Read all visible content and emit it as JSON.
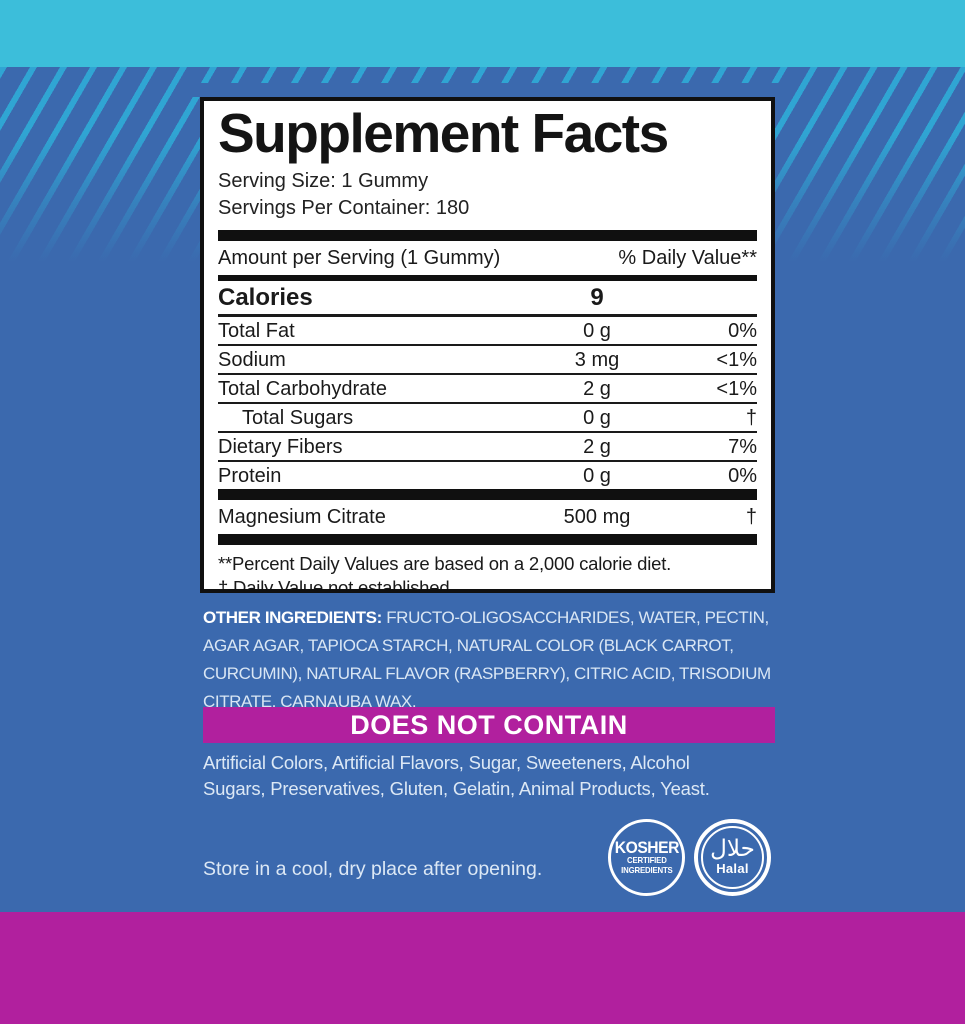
{
  "colors": {
    "teal_band": "#3cbeda",
    "background_blue": "#3b69ae",
    "stripe_cyan": "#2fa8d5",
    "magenta": "#b1209e",
    "panel_black": "#101010",
    "light_text": "#dce8f5"
  },
  "panel": {
    "title": "Supplement Facts",
    "serving_size": "Serving Size: 1 Gummy",
    "servings_per_container": "Servings Per Container: 180",
    "header": {
      "amount_label": "Amount per Serving (1 Gummy)",
      "dv_label": "% Daily Value**"
    },
    "calories": {
      "label": "Calories",
      "value": "9"
    },
    "rows": [
      {
        "name": "Total Fat",
        "amount": "0 g",
        "dv": "0%"
      },
      {
        "name": "Sodium",
        "amount": "3 mg",
        "dv": "<1%"
      },
      {
        "name": "Total Carbohydrate",
        "amount": "2 g",
        "dv": "<1%"
      },
      {
        "name": "Total Sugars",
        "amount": "0 g",
        "dv": "†"
      },
      {
        "name": "Dietary Fibers",
        "amount": "2 g",
        "dv": "7%"
      },
      {
        "name": "Protein",
        "amount": "0 g",
        "dv": "0%"
      }
    ],
    "supplement_row": {
      "name": "Magnesium Citrate",
      "amount": "500 mg",
      "dv": "†"
    },
    "footnote_dv": "**Percent Daily Values are based on a 2,000 calorie diet.",
    "footnote_dagger": "† Daily Value not established."
  },
  "other_ingredients": {
    "label": "OTHER INGREDIENTS:",
    "text": "FRUCTO-OLIGOSACCHARIDES, WATER, PECTIN,\nAGAR AGAR, TAPIOCA STARCH, NATURAL COLOR (BLACK CARROT,\nCURCUMIN), NATURAL FLAVOR (RASPBERRY), CITRIC ACID, TRISODIUM\nCITRATE, CARNAUBA WAX."
  },
  "does_not_contain": {
    "banner": "DOES NOT CONTAIN",
    "items": "Artificial Colors, Artificial Flavors, Sugar, Sweeteners, Alcohol\nSugars, Preservatives, Gluten, Gelatin, Animal Products, Yeast."
  },
  "storage": "Store in a cool, dry place after opening.",
  "badges": {
    "kosher": {
      "line1": "KOSHER",
      "line2": "CERTIFIED",
      "line3": "INGREDIENTS"
    },
    "halal": {
      "arabic": "حلال",
      "label": "Halal"
    }
  }
}
